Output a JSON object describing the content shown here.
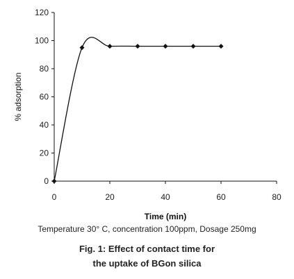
{
  "chart_data": {
    "type": "line",
    "xlabel": "Time (min)",
    "ylabel": "% adsorption",
    "xlim": [
      0,
      80
    ],
    "ylim": [
      0,
      120
    ],
    "x_ticks": [
      0,
      20,
      40,
      60,
      80
    ],
    "y_ticks": [
      0,
      20,
      40,
      60,
      80,
      100,
      120
    ],
    "grid": false,
    "legend": "none",
    "smooth": true,
    "series": [
      {
        "x": [
          0,
          10,
          20,
          30,
          40,
          50,
          60
        ],
        "y": [
          0,
          95,
          96,
          96,
          96,
          96,
          96
        ]
      }
    ],
    "colors": {
      "line": "#111111",
      "axis": "#111111"
    }
  },
  "captions": {
    "conditions": "Temperature 30° C, concentration 100ppm, Dosage 250mg",
    "figure_line1": "Fig. 1: Effect of contact time for",
    "figure_line2": "the uptake of  BGon silica"
  }
}
